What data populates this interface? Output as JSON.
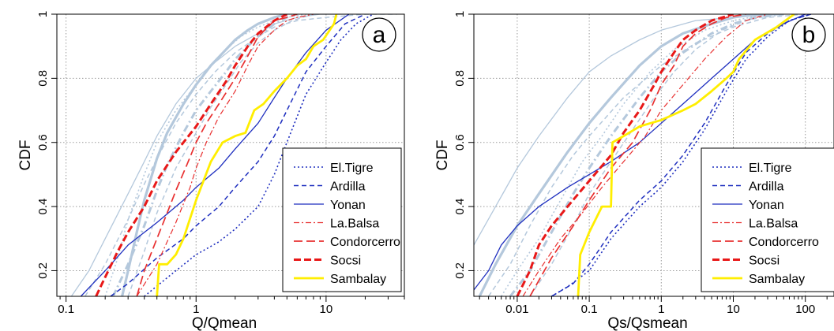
{
  "chart_data": [
    {
      "type": "line",
      "panel_label": "a",
      "xlabel": "Q/Qmean",
      "ylabel": "CDF",
      "x_scale": "log",
      "xlim": [
        0.085,
        40
      ],
      "ylim": [
        0.12,
        1.0
      ],
      "x_ticks": [
        0.1,
        1,
        10
      ],
      "x_tick_labels": [
        "0.1",
        "1",
        "10"
      ],
      "y_ticks": [
        0.2,
        0.4,
        0.6,
        0.8,
        1.0
      ],
      "y_tick_labels": [
        "0.2",
        "0.4",
        "0.6",
        "0.8",
        "1"
      ],
      "grid": true,
      "legend_position": "bottom-right",
      "series": [
        {
          "name": "El.Tigre",
          "color": "#1f2fbf",
          "dash": "dotted",
          "x": [
            0.4,
            0.7,
            1.0,
            1.5,
            2.0,
            3.0,
            4.0,
            5.0,
            7.0,
            10.0,
            13.0,
            17.0,
            23.0
          ],
          "y": [
            0.12,
            0.2,
            0.25,
            0.29,
            0.33,
            0.4,
            0.5,
            0.6,
            0.75,
            0.85,
            0.92,
            0.97,
            1.0
          ]
        },
        {
          "name": "Ardilla",
          "color": "#1f2fbf",
          "dash": "dashed",
          "x": [
            0.22,
            0.3,
            0.5,
            0.8,
            1.0,
            1.5,
            2.0,
            3.0,
            4.0,
            5.0,
            7.0,
            10.0,
            14.0,
            20.0
          ],
          "y": [
            0.12,
            0.16,
            0.24,
            0.3,
            0.34,
            0.4,
            0.46,
            0.54,
            0.62,
            0.7,
            0.82,
            0.9,
            0.97,
            1.0
          ]
        },
        {
          "name": "Yonan",
          "color": "#1f2fbf",
          "dash": "solid",
          "x": [
            0.13,
            0.2,
            0.3,
            0.5,
            0.8,
            1.0,
            1.5,
            2.0,
            3.0,
            4.0,
            5.0,
            7.0,
            10.0,
            15.0
          ],
          "y": [
            0.12,
            0.2,
            0.28,
            0.35,
            0.42,
            0.46,
            0.52,
            0.58,
            0.66,
            0.74,
            0.8,
            0.88,
            0.95,
            1.0
          ]
        },
        {
          "name": "La.Balsa",
          "color": "#e83030",
          "dash": "dashdot",
          "x": [
            0.35,
            0.5,
            0.7,
            0.9,
            1.0,
            1.2,
            1.5,
            2.0,
            2.5,
            3.0,
            4.0,
            5.0,
            6.0,
            8.0
          ],
          "y": [
            0.12,
            0.22,
            0.35,
            0.46,
            0.52,
            0.6,
            0.68,
            0.76,
            0.84,
            0.9,
            0.95,
            0.98,
            0.99,
            1.0
          ]
        },
        {
          "name": "Condorcerro",
          "color": "#e83030",
          "dash": "longdash",
          "x": [
            0.35,
            0.4,
            0.5,
            0.6,
            0.7,
            0.85,
            1.0,
            1.2,
            1.5,
            2.0,
            2.5,
            3.0,
            4.0,
            5.0,
            6.0
          ],
          "y": [
            0.12,
            0.2,
            0.3,
            0.38,
            0.45,
            0.53,
            0.6,
            0.66,
            0.72,
            0.8,
            0.87,
            0.93,
            0.98,
            0.99,
            1.0
          ]
        },
        {
          "name": "Socsi",
          "color": "#e81818",
          "dash": "thickdash",
          "x": [
            0.17,
            0.2,
            0.25,
            0.3,
            0.4,
            0.5,
            0.7,
            1.0,
            1.3,
            1.7,
            2.0,
            2.5,
            3.0,
            4.0,
            5.0
          ],
          "y": [
            0.12,
            0.18,
            0.26,
            0.32,
            0.4,
            0.48,
            0.57,
            0.65,
            0.72,
            0.79,
            0.84,
            0.9,
            0.94,
            0.98,
            1.0
          ]
        },
        {
          "name": "Sambalay",
          "color": "#ffee00",
          "dash": "solid",
          "x": [
            0.5,
            0.52,
            0.6,
            0.7,
            0.8,
            1.0,
            1.3,
            1.6,
            2.0,
            2.4,
            2.8,
            3.3,
            4.0,
            5.0,
            6.0,
            7.0,
            8.0,
            9.5,
            11.5,
            12.0
          ],
          "y": [
            0.12,
            0.22,
            0.22,
            0.25,
            0.3,
            0.42,
            0.54,
            0.6,
            0.62,
            0.63,
            0.7,
            0.72,
            0.76,
            0.8,
            0.84,
            0.86,
            0.9,
            0.92,
            0.97,
            1.0
          ]
        },
        {
          "color": "#b4c8dc",
          "dash": "thicksolid",
          "x": [
            0.27,
            0.3,
            0.35,
            0.4,
            0.5,
            0.6,
            0.8,
            1.0,
            1.3,
            1.7,
            2.0,
            2.5,
            3.0,
            4.0,
            5.0
          ],
          "y": [
            0.12,
            0.2,
            0.32,
            0.42,
            0.55,
            0.63,
            0.72,
            0.78,
            0.84,
            0.89,
            0.92,
            0.95,
            0.97,
            0.99,
            1.0
          ]
        },
        {
          "color": "#b4c8dc",
          "dash": "thickdashdot",
          "x": [
            0.23,
            0.3,
            0.4,
            0.5,
            0.6,
            0.8,
            1.0,
            1.3,
            1.7,
            2.0,
            2.5,
            3.0,
            4.0,
            5.0,
            6.0
          ],
          "y": [
            0.12,
            0.22,
            0.34,
            0.45,
            0.53,
            0.63,
            0.7,
            0.76,
            0.82,
            0.86,
            0.9,
            0.93,
            0.97,
            0.99,
            1.0
          ]
        },
        {
          "color": "#b4c8dc",
          "dash": "solid",
          "x": [
            0.11,
            0.15,
            0.2,
            0.3,
            0.4,
            0.5,
            0.7,
            1.0,
            1.4,
            2.0,
            3.0,
            4.0,
            6.0,
            9.0,
            15.0
          ],
          "y": [
            0.12,
            0.2,
            0.3,
            0.44,
            0.54,
            0.62,
            0.72,
            0.8,
            0.85,
            0.9,
            0.94,
            0.97,
            0.99,
            1.0,
            1.0
          ]
        },
        {
          "color": "#b4c8dc",
          "dash": "dashed",
          "x": [
            0.14,
            0.2,
            0.3,
            0.4,
            0.5,
            0.7,
            1.0,
            1.4,
            2.0,
            3.0,
            4.0,
            6.0,
            10.0,
            20.0,
            35.0
          ],
          "y": [
            0.12,
            0.22,
            0.36,
            0.47,
            0.55,
            0.66,
            0.75,
            0.82,
            0.88,
            0.93,
            0.96,
            0.98,
            0.99,
            1.0,
            1.0
          ]
        },
        {
          "color": "#b4c8dc",
          "dash": "dotted",
          "x": [
            0.2,
            0.25,
            0.3,
            0.4,
            0.5,
            0.7,
            1.0,
            1.3,
            1.7,
            2.2,
            3.0,
            4.0,
            5.0,
            7.0
          ],
          "y": [
            0.12,
            0.24,
            0.36,
            0.5,
            0.6,
            0.7,
            0.78,
            0.84,
            0.89,
            0.93,
            0.96,
            0.98,
            0.99,
            1.0
          ]
        },
        {
          "color": "#b4c8dc",
          "dash": "dashed",
          "x": [
            0.3,
            0.4,
            0.5,
            0.7,
            1.0,
            1.3,
            1.7,
            2.2,
            3.0,
            4.0,
            5.5,
            8.0
          ],
          "y": [
            0.12,
            0.26,
            0.38,
            0.52,
            0.63,
            0.71,
            0.78,
            0.85,
            0.91,
            0.95,
            0.98,
            1.0
          ]
        }
      ]
    },
    {
      "type": "line",
      "panel_label": "b",
      "xlabel": "Qs/Qsmean",
      "ylabel": "CDF",
      "x_scale": "log",
      "xlim": [
        0.0025,
        250
      ],
      "ylim": [
        0.12,
        1.0
      ],
      "x_ticks": [
        0.01,
        0.1,
        1,
        10,
        100
      ],
      "x_tick_labels": [
        "0.01",
        "0.1",
        "1",
        "10",
        "100"
      ],
      "y_ticks": [
        0.2,
        0.4,
        0.6,
        0.8,
        1.0
      ],
      "y_tick_labels": [
        "0.2",
        "0.4",
        "0.6",
        "0.8",
        "1"
      ],
      "grid": true,
      "legend_position": "bottom-right",
      "series": [
        {
          "name": "El.Tigre",
          "color": "#1f2fbf",
          "dash": "dotted",
          "x": [
            0.03,
            0.05,
            0.1,
            0.2,
            0.5,
            1.0,
            2.0,
            4.0,
            8.0,
            15.0,
            30.0,
            60.0,
            120.0
          ],
          "y": [
            0.12,
            0.15,
            0.2,
            0.3,
            0.4,
            0.46,
            0.54,
            0.64,
            0.76,
            0.86,
            0.93,
            0.98,
            1.0
          ]
        },
        {
          "name": "Ardilla",
          "color": "#1f2fbf",
          "dash": "dashed",
          "x": [
            0.03,
            0.06,
            0.1,
            0.2,
            0.5,
            1.0,
            2.0,
            4.0,
            8.0,
            15.0,
            30.0,
            60.0,
            120.0
          ],
          "y": [
            0.12,
            0.16,
            0.22,
            0.32,
            0.42,
            0.48,
            0.56,
            0.66,
            0.78,
            0.88,
            0.94,
            0.98,
            1.0
          ]
        },
        {
          "name": "Yonan",
          "color": "#1f2fbf",
          "dash": "solid",
          "x": [
            0.0025,
            0.004,
            0.006,
            0.01,
            0.02,
            0.05,
            0.1,
            0.2,
            0.5,
            1.0,
            2.0,
            5.0,
            10.0,
            20.0,
            50.0,
            100.0
          ],
          "y": [
            0.14,
            0.2,
            0.28,
            0.34,
            0.4,
            0.46,
            0.5,
            0.54,
            0.6,
            0.66,
            0.72,
            0.8,
            0.86,
            0.92,
            0.97,
            1.0
          ]
        },
        {
          "name": "La.Balsa",
          "color": "#e83030",
          "dash": "dashdot",
          "x": [
            0.012,
            0.02,
            0.04,
            0.08,
            0.15,
            0.3,
            0.6,
            1.0,
            2.0,
            4.0,
            8.0,
            15.0,
            30.0
          ],
          "y": [
            0.12,
            0.2,
            0.3,
            0.38,
            0.46,
            0.54,
            0.62,
            0.7,
            0.78,
            0.86,
            0.93,
            0.98,
            1.0
          ]
        },
        {
          "name": "Condorcerro",
          "color": "#e83030",
          "dash": "longdash",
          "x": [
            0.015,
            0.03,
            0.06,
            0.1,
            0.2,
            0.4,
            0.7,
            1.0,
            1.5,
            2.0,
            3.0,
            5.0,
            8.0,
            15.0
          ],
          "y": [
            0.12,
            0.24,
            0.34,
            0.42,
            0.52,
            0.6,
            0.7,
            0.78,
            0.84,
            0.9,
            0.94,
            0.97,
            0.99,
            1.0
          ]
        },
        {
          "name": "Socsi",
          "color": "#e81818",
          "dash": "thickdash",
          "x": [
            0.01,
            0.015,
            0.02,
            0.03,
            0.05,
            0.1,
            0.2,
            0.3,
            0.5,
            0.8,
            1.0,
            1.5,
            2.0,
            3.0,
            5.0,
            10.0
          ],
          "y": [
            0.12,
            0.2,
            0.28,
            0.34,
            0.4,
            0.48,
            0.56,
            0.63,
            0.7,
            0.78,
            0.82,
            0.88,
            0.92,
            0.95,
            0.98,
            1.0
          ]
        },
        {
          "name": "Sambalay",
          "color": "#ffee00",
          "dash": "solid",
          "x": [
            0.07,
            0.075,
            0.1,
            0.15,
            0.2,
            0.21,
            0.3,
            0.5,
            1.0,
            2.0,
            3.0,
            5.0,
            8.0,
            10.0,
            12.0,
            20.0,
            40.0,
            70.0
          ],
          "y": [
            0.12,
            0.25,
            0.32,
            0.4,
            0.4,
            0.6,
            0.62,
            0.65,
            0.67,
            0.7,
            0.72,
            0.76,
            0.8,
            0.82,
            0.86,
            0.92,
            0.96,
            1.0
          ]
        },
        {
          "color": "#b4c8dc",
          "dash": "thicksolid",
          "x": [
            0.003,
            0.005,
            0.01,
            0.02,
            0.05,
            0.1,
            0.2,
            0.5,
            1.0,
            2.0,
            5.0,
            10.0,
            20.0,
            50.0
          ],
          "y": [
            0.12,
            0.22,
            0.34,
            0.44,
            0.57,
            0.66,
            0.74,
            0.84,
            0.9,
            0.94,
            0.97,
            0.99,
            1.0,
            1.0
          ]
        },
        {
          "color": "#b4c8dc",
          "dash": "solid",
          "x": [
            0.0025,
            0.005,
            0.01,
            0.02,
            0.05,
            0.1,
            0.2,
            0.5,
            1.0,
            3.0,
            10.0,
            40.0
          ],
          "y": [
            0.28,
            0.4,
            0.52,
            0.62,
            0.74,
            0.82,
            0.87,
            0.92,
            0.95,
            0.98,
            0.99,
            1.0
          ]
        },
        {
          "color": "#b4c8dc",
          "dash": "thickdashdot",
          "x": [
            0.008,
            0.015,
            0.03,
            0.06,
            0.1,
            0.2,
            0.5,
            1.0,
            2.0,
            5.0,
            10.0,
            20.0,
            50.0
          ],
          "y": [
            0.12,
            0.2,
            0.32,
            0.44,
            0.52,
            0.62,
            0.74,
            0.82,
            0.88,
            0.94,
            0.97,
            0.99,
            1.0
          ]
        },
        {
          "color": "#b4c8dc",
          "dash": "dashed",
          "x": [
            0.004,
            0.008,
            0.015,
            0.03,
            0.06,
            0.1,
            0.3,
            1.0,
            3.0,
            10.0,
            30.0,
            100.0
          ],
          "y": [
            0.12,
            0.22,
            0.34,
            0.46,
            0.56,
            0.62,
            0.74,
            0.84,
            0.91,
            0.96,
            0.99,
            1.0
          ]
        },
        {
          "color": "#b4c8dc",
          "dash": "dotted",
          "x": [
            0.006,
            0.01,
            0.02,
            0.04,
            0.08,
            0.15,
            0.3,
            0.7,
            1.5,
            4.0,
            10.0,
            30.0
          ],
          "y": [
            0.12,
            0.2,
            0.3,
            0.42,
            0.54,
            0.62,
            0.72,
            0.82,
            0.89,
            0.95,
            0.98,
            1.0
          ]
        },
        {
          "color": "#b4c8dc",
          "dash": "dashed",
          "x": [
            0.015,
            0.03,
            0.06,
            0.1,
            0.2,
            0.4,
            0.8,
            1.5,
            3.0,
            7.0,
            15.0,
            40.0
          ],
          "y": [
            0.12,
            0.22,
            0.34,
            0.44,
            0.54,
            0.64,
            0.74,
            0.82,
            0.89,
            0.95,
            0.98,
            1.0
          ]
        }
      ]
    }
  ]
}
